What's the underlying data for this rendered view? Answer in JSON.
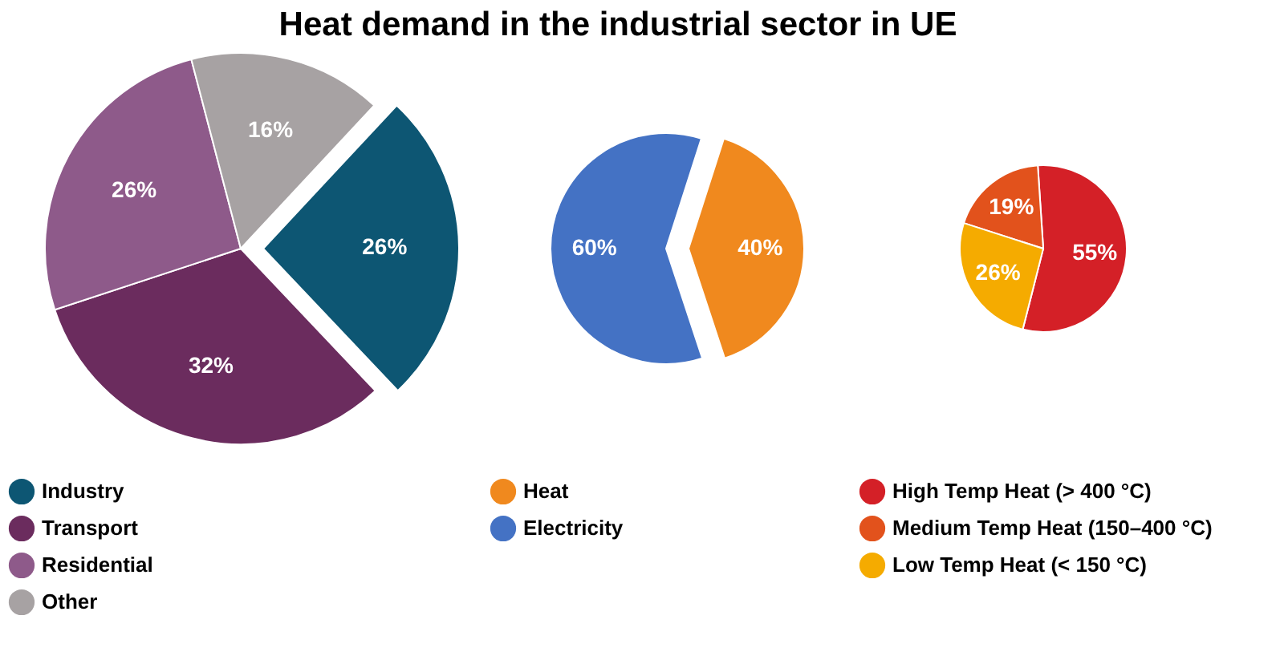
{
  "chart_data": [
    {
      "type": "pie",
      "title": "Heat demand in the industrial sector in UE",
      "categories": [
        "Industry",
        "Transport",
        "Residential",
        "Other"
      ],
      "values": [
        26,
        32,
        26,
        16
      ],
      "colors": [
        "#0d5673",
        "#6b2c5e",
        "#8e5a8a",
        "#a7a2a3"
      ],
      "value_labels": [
        "26%",
        "32%",
        "26%",
        "16%"
      ],
      "legend": "bottom"
    },
    {
      "type": "pie",
      "categories": [
        "Heat",
        "Electricity"
      ],
      "values": [
        40,
        60
      ],
      "colors": [
        "#f0891e",
        "#4472c4"
      ],
      "value_labels": [
        "40%",
        "60%"
      ],
      "legend": "bottom"
    },
    {
      "type": "pie",
      "categories": [
        "High Temp Heat (> 400 °C)",
        "Medium Temp Heat (150–400 °C)",
        "Low Temp Heat (< 150 °C)"
      ],
      "values": [
        55,
        19,
        26
      ],
      "colors": [
        "#d42027",
        "#e2521c",
        "#f5ab00"
      ],
      "value_labels": [
        "55%",
        "19%",
        "26%"
      ],
      "legend": "bottom"
    }
  ]
}
